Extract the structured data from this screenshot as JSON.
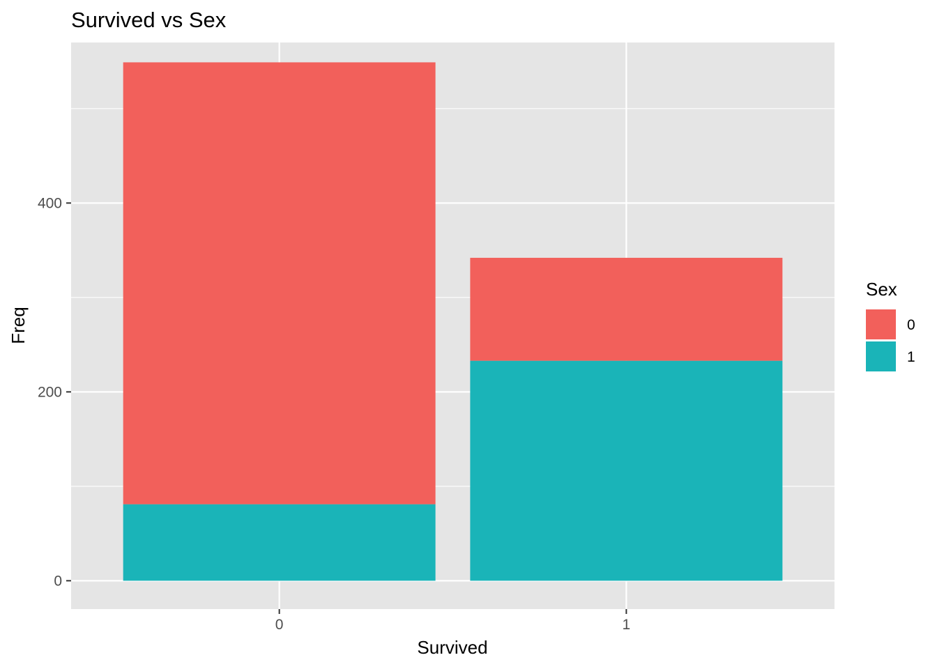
{
  "chart_data": {
    "type": "bar",
    "stacked": true,
    "title": "Survived vs Sex",
    "xlabel": "Survived",
    "ylabel": "Freq",
    "categories": [
      "0",
      "1"
    ],
    "ylim": [
      -30,
      570
    ],
    "yticks": [
      0,
      200,
      400
    ],
    "series": [
      {
        "name": "1",
        "values": [
          81,
          233
        ],
        "color": "#1AB4B8"
      },
      {
        "name": "0",
        "values": [
          468,
          109
        ],
        "color": "#F2605B"
      }
    ],
    "legend": {
      "title": "Sex",
      "entries": [
        {
          "label": "0",
          "color": "#F2605B"
        },
        {
          "label": "1",
          "color": "#1AB4B8"
        }
      ],
      "placement": "right"
    },
    "grid": true,
    "panel_background": "#E5E5E5",
    "grid_color": "#FFFFFF"
  }
}
